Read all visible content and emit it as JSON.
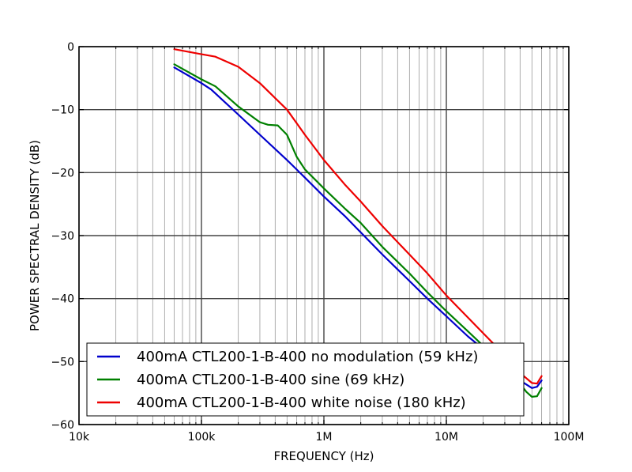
{
  "chart_data": {
    "type": "line",
    "title": "",
    "xlabel": "FREQUENCY (Hz)",
    "ylabel": "POWER SPECTRAL DENSITY (dB)",
    "x_scale": "log",
    "xlim": [
      10000,
      100000000
    ],
    "ylim": [
      -60,
      0
    ],
    "x_ticks": [
      10000,
      100000,
      1000000,
      10000000,
      100000000
    ],
    "x_tick_labels": [
      "10k",
      "100k",
      "1M",
      "10M",
      "100M"
    ],
    "y_ticks": [
      0,
      -10,
      -20,
      -30,
      -40,
      -50,
      -60
    ],
    "y_tick_labels": [
      "0",
      "−10",
      "−20",
      "−30",
      "−40",
      "−50",
      "−60"
    ],
    "grid": true,
    "legend_position": "lower-left",
    "series": [
      {
        "name": "400mA CTL200-1-B-400 no modulation (59 kHz)",
        "color": "#0000cc",
        "x": [
          60000,
          100000,
          120000,
          200000,
          300000,
          500000,
          700000,
          1000000,
          1500000,
          2000000,
          3000000,
          5000000,
          7000000,
          10000000,
          15000000,
          20000000,
          30000000,
          40000000,
          50000000,
          55000000,
          60000000
        ],
        "y": [
          -3.3,
          -5.8,
          -6.8,
          -10.8,
          -14,
          -18,
          -20.8,
          -23.8,
          -27,
          -29.5,
          -33,
          -37.2,
          -40,
          -42.8,
          -46,
          -48,
          -51,
          -53,
          -54.2,
          -54,
          -53
        ]
      },
      {
        "name": "400mA CTL200-1-B-400 sine (69 kHz)",
        "color": "#008000",
        "x": [
          60000,
          100000,
          130000,
          200000,
          300000,
          350000,
          420000,
          500000,
          600000,
          700000,
          1000000,
          1500000,
          2000000,
          3000000,
          5000000,
          7000000,
          10000000,
          15000000,
          20000000,
          30000000,
          40000000,
          45000000,
          50000000,
          55000000,
          60000000
        ],
        "y": [
          -2.8,
          -5.2,
          -6.3,
          -9.5,
          -12,
          -12.4,
          -12.5,
          -14,
          -17.5,
          -19.5,
          -22.5,
          -25.8,
          -28,
          -31.8,
          -36,
          -39,
          -42,
          -45.2,
          -47.5,
          -51,
          -53.5,
          -54.8,
          -55.6,
          -55.5,
          -54.2
        ]
      },
      {
        "name": "400mA CTL200-1-B-400 white noise (180 kHz)",
        "color": "#ee0000",
        "x": [
          60000,
          100000,
          130000,
          200000,
          300000,
          500000,
          700000,
          1000000,
          1500000,
          2000000,
          3000000,
          5000000,
          7000000,
          10000000,
          15000000,
          20000000,
          30000000,
          40000000,
          50000000,
          55000000,
          60000000
        ],
        "y": [
          -0.4,
          -1.2,
          -1.6,
          -3.2,
          -5.8,
          -10,
          -14,
          -18,
          -22,
          -24.6,
          -28.5,
          -33,
          -36,
          -39.5,
          -43,
          -45.5,
          -49,
          -51.8,
          -53.4,
          -53.5,
          -52.3
        ]
      }
    ]
  }
}
